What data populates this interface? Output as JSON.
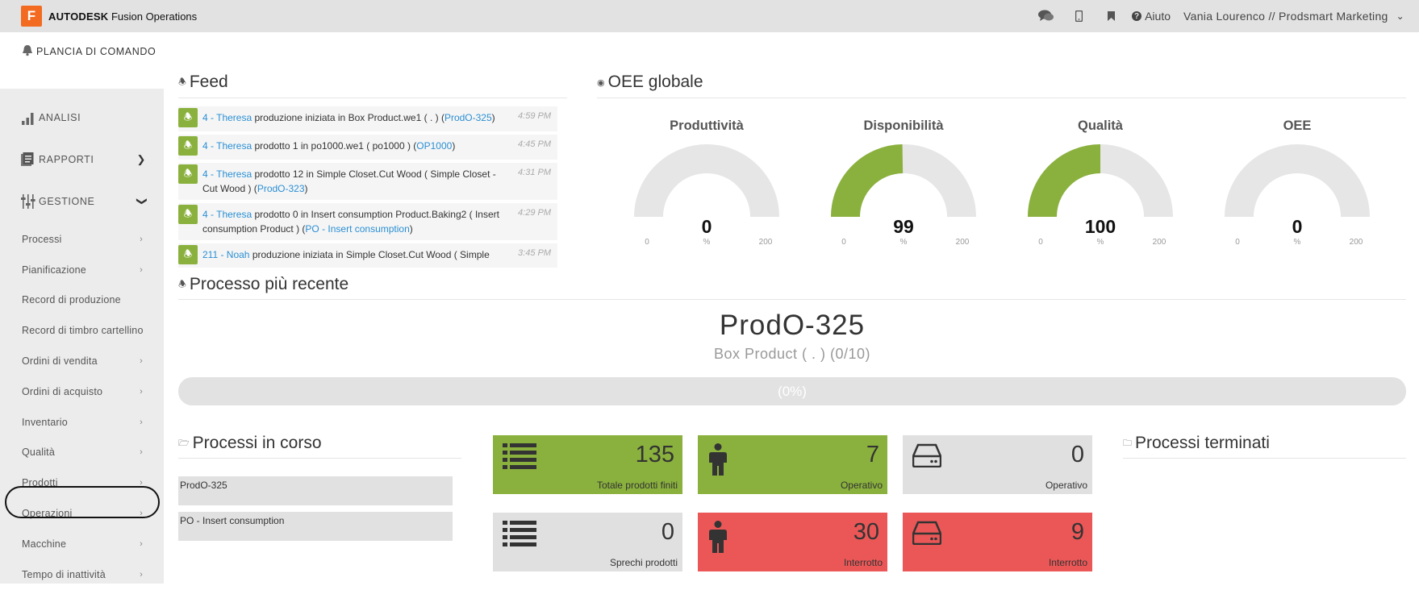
{
  "topbar": {
    "logo_letter": "F",
    "brand_bold": "AUTODESK",
    "brand_rest": "Fusion Operations",
    "help_label": "Aiuto",
    "user_label": "Vania Lourenco // Prodsmart Marketing"
  },
  "sidebar": {
    "dashboard_label": "PLANCIA DI COMANDO",
    "main": [
      {
        "label": "ANALISI",
        "icon": "bar-chart-icon"
      },
      {
        "label": "RAPPORTI",
        "icon": "report-icon"
      },
      {
        "label": "GESTIONE",
        "icon": "sliders-icon"
      }
    ],
    "sub": [
      {
        "label": "Processi"
      },
      {
        "label": "Pianificazione"
      },
      {
        "label": "Record di produzione"
      },
      {
        "label": "Record di timbro cartellino"
      },
      {
        "label": "Ordini di vendita"
      },
      {
        "label": "Ordini di acquisto"
      },
      {
        "label": "Inventario"
      },
      {
        "label": "Qualità"
      },
      {
        "label": "Prodotti"
      },
      {
        "label": "Operazioni"
      },
      {
        "label": "Macchine"
      },
      {
        "label": "Tempo di inattività"
      }
    ]
  },
  "feed": {
    "title": "Feed",
    "items": [
      {
        "who": "4 - Theresa",
        "text": " produzione iniziata in Box Product.we1 ( . ) (",
        "link": "ProdO-325",
        "end": ")",
        "time": "4:59 PM"
      },
      {
        "who": "4 - Theresa",
        "text": " prodotto 1 in po1000.we1 ( po1000 ) (",
        "link": "OP1000",
        "end": ")",
        "time": "4:45 PM"
      },
      {
        "who": "4 - Theresa",
        "text": " prodotto 12 in Simple Closet.Cut Wood ( Simple Closet - Cut Wood ) (",
        "link": "ProdO-323",
        "end": ")",
        "time": "4:31 PM"
      },
      {
        "who": "4 - Theresa",
        "text": " prodotto 0 in Insert consumption Product.Baking2 ( Insert consumption Product ) (",
        "link": "PO - Insert consumption",
        "end": ")",
        "time": "4:29 PM"
      },
      {
        "who": "211 - Noah",
        "text": " produzione iniziata in Simple Closet.Cut Wood ( Simple",
        "link": "",
        "end": "",
        "time": "3:45 PM"
      }
    ]
  },
  "oee": {
    "title": "OEE globale",
    "min_label": "0",
    "max_label": "200",
    "unit": "%",
    "gauge_color": "#8ab13d",
    "track_color": "#e6e6e6",
    "gauges": [
      {
        "title": "Produttività",
        "value": "0",
        "level": 0
      },
      {
        "title": "Disponibilità",
        "value": "99",
        "level": 99
      },
      {
        "title": "Qualità",
        "value": "100",
        "level": 100
      },
      {
        "title": "OEE",
        "value": "0",
        "level": 0
      }
    ]
  },
  "latest": {
    "title": "Processo più recente",
    "order": "ProdO-325",
    "product": "Box Product ( . ) (0/10)",
    "progress_label": "(0%)",
    "progress_percent": 0
  },
  "running": {
    "title": "Processi in corso",
    "items": [
      "ProdO-325",
      "PO - Insert consumption"
    ]
  },
  "tiles": [
    {
      "value": "135",
      "label": "Totale prodotti finiti",
      "icon": "list-icon",
      "color": "green"
    },
    {
      "value": "7",
      "label": "Operativo",
      "icon": "person-icon",
      "color": "green"
    },
    {
      "value": "0",
      "label": "Operativo",
      "icon": "hard-drive-icon",
      "color": "grey"
    },
    {
      "value": "0",
      "label": "Sprechi prodotti",
      "icon": "list-icon",
      "color": "grey"
    },
    {
      "value": "30",
      "label": "Interrotto",
      "icon": "person-icon",
      "color": "red"
    },
    {
      "value": "9",
      "label": "Interrotto",
      "icon": "hard-drive-icon",
      "color": "red"
    }
  ],
  "finished": {
    "title": "Processi terminati"
  }
}
